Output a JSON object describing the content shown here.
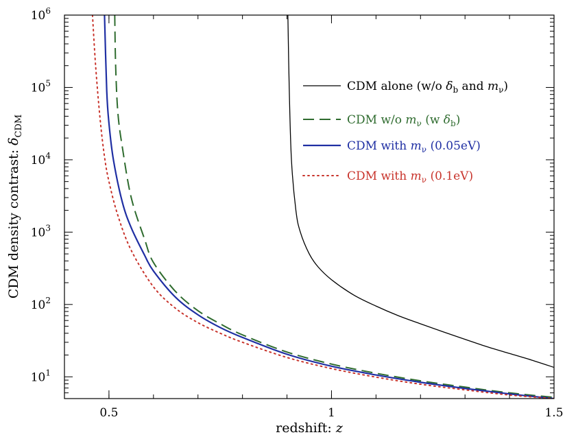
{
  "chart_data": {
    "type": "line",
    "xlabel": "redshift: z",
    "ylabel": "CDM density contrast: δ_CDM",
    "xlim": [
      0.4,
      1.5
    ],
    "ylim": [
      5,
      1000000
    ],
    "yscale": "log",
    "xticks": [
      {
        "value": 0.5,
        "label": "0.5"
      },
      {
        "value": 1.0,
        "label": "1"
      },
      {
        "value": 1.5,
        "label": "1.5"
      }
    ],
    "yticks": [
      {
        "value": 10,
        "base": "10",
        "exp": "1"
      },
      {
        "value": 100,
        "base": "10",
        "exp": "2"
      },
      {
        "value": 1000,
        "base": "10",
        "exp": "3"
      },
      {
        "value": 10000,
        "base": "10",
        "exp": "4"
      },
      {
        "value": 100000,
        "base": "10",
        "exp": "5"
      },
      {
        "value": 1000000,
        "base": "10",
        "exp": "6"
      }
    ],
    "grid": false,
    "legend_position": "top-right",
    "series": [
      {
        "name": "CDM alone (w/o δb and mν)",
        "legend": {
          "pre": "CDM alone (w/o ",
          "sym1": "δ",
          "sub1": "b",
          "mid": " and ",
          "sym2": "m",
          "sub2": "ν",
          "post": ")"
        },
        "color": "#000000",
        "dash": "solid",
        "x": [
          0.902,
          0.905,
          0.91,
          0.92,
          0.93,
          0.95,
          0.97,
          1.0,
          1.05,
          1.1,
          1.15,
          1.2,
          1.25,
          1.3,
          1.35,
          1.4,
          1.45,
          1.5
        ],
        "y": [
          1000000,
          100000,
          10000,
          2000,
          1000,
          500,
          330,
          220,
          135,
          95,
          70,
          54,
          42,
          33,
          26,
          21,
          17,
          13.5
        ]
      },
      {
        "name": "CDM w/o mν (w δb)",
        "legend": {
          "pre": "CDM w/o ",
          "sym1": "m",
          "sub1": "ν",
          "mid": " (w ",
          "sym2": "δ",
          "sub2": "b",
          "post": ")"
        },
        "color": "#2e6b2e",
        "dash": "dashed",
        "x": [
          0.513,
          0.515,
          0.52,
          0.53,
          0.55,
          0.58,
          0.6,
          0.65,
          0.7,
          0.75,
          0.8,
          0.9,
          1.0,
          1.1,
          1.2,
          1.3,
          1.4,
          1.5
        ],
        "y": [
          1000000,
          200000,
          45000,
          15000,
          3000,
          800,
          380,
          150,
          82,
          54,
          38,
          22,
          15,
          11.2,
          8.8,
          7.2,
          6.0,
          5.2
        ]
      },
      {
        "name": "CDM with mν (0.05eV)",
        "legend": {
          "pre": "CDM with ",
          "sym1": "m",
          "sub1": "ν",
          "mid": " (0.05eV)",
          "sym2": "",
          "sub2": "",
          "post": ""
        },
        "color": "#1f2fa3",
        "dash": "solid",
        "x": [
          0.49,
          0.495,
          0.5,
          0.51,
          0.53,
          0.55,
          0.58,
          0.6,
          0.65,
          0.7,
          0.75,
          0.8,
          0.9,
          1.0,
          1.1,
          1.2,
          1.3,
          1.4,
          1.5
        ],
        "y": [
          1000000,
          90000,
          32000,
          10000,
          2600,
          1150,
          480,
          290,
          125,
          72,
          48,
          35,
          20.5,
          14,
          10.6,
          8.4,
          6.9,
          5.8,
          5.0
        ]
      },
      {
        "name": "CDM with mν (0.1eV)",
        "legend": {
          "pre": "CDM with ",
          "sym1": "m",
          "sub1": "ν",
          "mid": " (0.1eV)",
          "sym2": "",
          "sub2": "",
          "post": ""
        },
        "color": "#c8332b",
        "dash": "dotted",
        "x": [
          0.463,
          0.47,
          0.48,
          0.49,
          0.5,
          0.52,
          0.55,
          0.6,
          0.65,
          0.7,
          0.75,
          0.8,
          0.9,
          1.0,
          1.1,
          1.2,
          1.3,
          1.4,
          1.5
        ],
        "y": [
          1000000,
          200000,
          37000,
          11000,
          5000,
          1700,
          560,
          175,
          88,
          56,
          40,
          30,
          18.5,
          13,
          9.9,
          7.9,
          6.6,
          5.6,
          5.0
        ]
      }
    ]
  }
}
